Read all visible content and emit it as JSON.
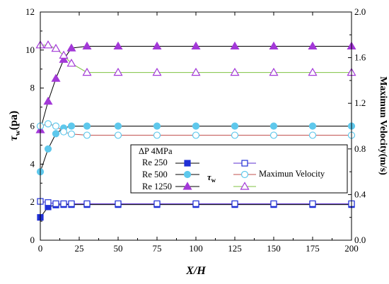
{
  "chart_data": {
    "type": "line",
    "xlabel": "X/H",
    "ylabel_left": "τw(pa)",
    "ylabel_left_main": "τ",
    "ylabel_left_sub": "w",
    "ylabel_left_unit": "(pa)",
    "ylabel_right": "Maximun Velocity(m/s)",
    "xlim": [
      0,
      200
    ],
    "ylim_left": [
      0,
      12
    ],
    "ylim_right": [
      0.0,
      2.0
    ],
    "x_ticks": [
      "0",
      "25",
      "50",
      "75",
      "100",
      "125",
      "150",
      "175",
      "200"
    ],
    "y_left_ticks": [
      "0",
      "2",
      "4",
      "6",
      "8",
      "10",
      "12"
    ],
    "y_right_ticks": [
      "0.0",
      "0.4",
      "0.8",
      "1.2",
      "1.6",
      "2.0"
    ],
    "legend": {
      "header": "ΔP 4MPa",
      "tau_label": "τw",
      "tau_label_main": "τ",
      "tau_label_sub": "w",
      "velocity_label": "Maximun Velocity",
      "rows": [
        "Re 250",
        "Re 500",
        "Re 1250"
      ]
    },
    "series": [
      {
        "name": "Re 250",
        "quantity": "τw",
        "axis": "left",
        "marker": "square",
        "filled": true,
        "color": "#1f2fd6",
        "x": [
          0,
          5,
          10,
          15,
          20,
          30,
          50,
          75,
          100,
          125,
          150,
          175,
          200
        ],
        "y": [
          1.2,
          1.75,
          1.85,
          1.87,
          1.87,
          1.87,
          1.87,
          1.87,
          1.87,
          1.87,
          1.87,
          1.87,
          1.87
        ]
      },
      {
        "name": "Re 500",
        "quantity": "τw",
        "axis": "left",
        "marker": "circle",
        "filled": true,
        "color": "#5ec8ec",
        "x": [
          0,
          5,
          10,
          15,
          20,
          30,
          50,
          75,
          100,
          125,
          150,
          175,
          200
        ],
        "y": [
          3.6,
          4.8,
          5.6,
          5.9,
          6.0,
          6.0,
          6.0,
          6.0,
          6.0,
          6.0,
          6.0,
          6.0,
          6.0
        ]
      },
      {
        "name": "Re 1250",
        "quantity": "τw",
        "axis": "left",
        "marker": "triangle",
        "filled": true,
        "color": "#a338d8",
        "x": [
          0,
          5,
          10,
          15,
          20,
          30,
          50,
          75,
          100,
          125,
          150,
          175,
          200
        ],
        "y": [
          5.8,
          7.3,
          8.5,
          9.5,
          10.1,
          10.2,
          10.2,
          10.2,
          10.2,
          10.2,
          10.2,
          10.2,
          10.2
        ]
      },
      {
        "name": "Re 250",
        "quantity": "Maximun Velocity",
        "axis": "right",
        "marker": "square",
        "filled": false,
        "color": "#1f2fd6",
        "line_color": "#5b2fd0",
        "x": [
          0,
          5,
          10,
          15,
          20,
          30,
          50,
          75,
          100,
          125,
          150,
          175,
          200
        ],
        "y": [
          0.34,
          0.33,
          0.32,
          0.32,
          0.32,
          0.32,
          0.32,
          0.32,
          0.32,
          0.32,
          0.32,
          0.32,
          0.32
        ]
      },
      {
        "name": "Re 500",
        "quantity": "Maximun Velocity",
        "axis": "right",
        "marker": "circle",
        "filled": false,
        "color": "#5ec8ec",
        "line_color": "#c0504d",
        "x": [
          0,
          5,
          10,
          15,
          20,
          30,
          50,
          75,
          100,
          125,
          150,
          175,
          200
        ],
        "y": [
          1.0,
          1.02,
          1.0,
          0.95,
          0.93,
          0.92,
          0.92,
          0.92,
          0.92,
          0.92,
          0.92,
          0.92,
          0.92
        ]
      },
      {
        "name": "Re 1250",
        "quantity": "Maximun Velocity",
        "axis": "right",
        "marker": "triangle",
        "filled": false,
        "color": "#a338d8",
        "line_color": "#7fc241",
        "x": [
          0,
          5,
          10,
          15,
          20,
          30,
          50,
          75,
          100,
          125,
          150,
          175,
          200
        ],
        "y": [
          1.71,
          1.71,
          1.68,
          1.62,
          1.55,
          1.47,
          1.47,
          1.47,
          1.47,
          1.47,
          1.47,
          1.47,
          1.47
        ]
      }
    ]
  }
}
